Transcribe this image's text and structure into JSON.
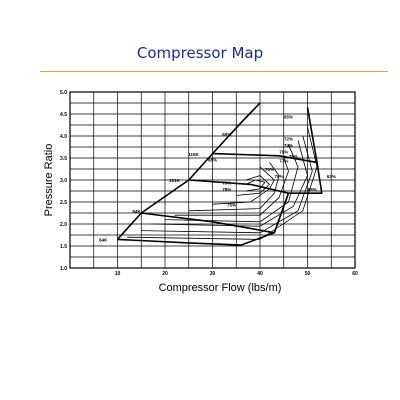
{
  "title": "Compressor Map",
  "chart_data": {
    "type": "line",
    "title": "Compressor Map",
    "xlabel": "Compressor Flow (lbs/m)",
    "ylabel": "Pressure Ratio",
    "xlim": [
      0,
      60
    ],
    "ylim": [
      1.0,
      5.0
    ],
    "x_ticks": [
      "10",
      "20",
      "30",
      "40",
      "50",
      "60"
    ],
    "y_ticks": [
      "1.0",
      "1.5",
      "2.0",
      "2.5",
      "3.0",
      "3.5",
      "4.0",
      "4.5",
      "5.0"
    ],
    "grid": true,
    "speed_lines": [
      {
        "label": "64K",
        "points": [
          [
            10,
            1.65
          ],
          [
            25,
            1.57
          ],
          [
            36,
            1.52
          ]
        ]
      },
      {
        "label": "84K",
        "points": [
          [
            15,
            2.25
          ],
          [
            30,
            2.05
          ],
          [
            38,
            1.9
          ],
          [
            43,
            1.8
          ]
        ]
      },
      {
        "label": "101K",
        "points": [
          [
            25,
            3.0
          ],
          [
            38,
            2.9
          ],
          [
            46,
            2.7
          ]
        ]
      },
      {
        "label": "115K",
        "points": [
          [
            30,
            3.6
          ],
          [
            44,
            3.55
          ],
          [
            52,
            3.4
          ]
        ]
      },
      {
        "label": "surge_line",
        "points": [
          [
            10,
            1.65
          ],
          [
            15,
            2.25
          ],
          [
            25,
            3.0
          ],
          [
            30,
            3.6
          ],
          [
            36,
            4.3
          ],
          [
            40,
            4.75
          ]
        ]
      },
      {
        "label": "choke_line",
        "points": [
          [
            50,
            4.65
          ],
          [
            52,
            3.4
          ],
          [
            53,
            2.7
          ],
          [
            46,
            2.7
          ],
          [
            43,
            1.8
          ],
          [
            36,
            1.52
          ]
        ]
      }
    ],
    "efficiency_islands": [
      {
        "label": "60%",
        "points": [
          [
            12,
            1.7
          ],
          [
            40,
            1.65
          ],
          [
            49,
            2.3
          ],
          [
            52,
            3.3
          ],
          [
            50,
            4.2
          ]
        ]
      },
      {
        "label": "65%",
        "points": [
          [
            15,
            1.85
          ],
          [
            40,
            1.8
          ],
          [
            48,
            2.3
          ],
          [
            51,
            3.2
          ],
          [
            49,
            4.0
          ]
        ]
      },
      {
        "label": "68%",
        "points": [
          [
            17,
            2.0
          ],
          [
            40,
            1.95
          ],
          [
            47,
            2.4
          ],
          [
            50,
            3.1
          ],
          [
            48,
            3.9
          ]
        ]
      },
      {
        "label": "70%",
        "points": [
          [
            20,
            2.1
          ],
          [
            40,
            2.05
          ],
          [
            46,
            2.5
          ],
          [
            48,
            3.3
          ],
          [
            46,
            3.8
          ]
        ]
      },
      {
        "label": "72%",
        "points": [
          [
            22,
            2.2
          ],
          [
            40,
            2.2
          ],
          [
            44,
            2.6
          ],
          [
            46,
            3.2
          ],
          [
            45,
            3.5
          ]
        ]
      },
      {
        "label": "74%",
        "points": [
          [
            25,
            2.3
          ],
          [
            40,
            2.35
          ],
          [
            43,
            2.7
          ],
          [
            44,
            3.1
          ],
          [
            42,
            3.4
          ]
        ]
      },
      {
        "label": "76%",
        "points": [
          [
            30,
            2.45
          ],
          [
            38,
            2.5
          ],
          [
            42,
            2.8
          ],
          [
            43,
            3.0
          ],
          [
            40,
            3.3
          ]
        ]
      },
      {
        "label": "77%",
        "points": [
          [
            35,
            2.65
          ],
          [
            40,
            2.7
          ],
          [
            42,
            2.9
          ],
          [
            40,
            3.1
          ],
          [
            37,
            3.0
          ]
        ]
      },
      {
        "label": "78%",
        "points": [
          [
            37,
            2.75
          ],
          [
            40,
            2.8
          ],
          [
            41,
            2.95
          ],
          [
            39,
            3.0
          ],
          [
            37,
            2.9
          ]
        ]
      }
    ],
    "annotations": [
      {
        "text": "64K",
        "x": 7,
        "y": 1.6
      },
      {
        "text": "84K",
        "x": 14,
        "y": 2.25
      },
      {
        "text": "101K",
        "x": 22,
        "y": 2.95
      },
      {
        "text": "115K",
        "x": 26,
        "y": 3.55
      },
      {
        "text": "60%",
        "x": 33,
        "y": 4.0
      },
      {
        "text": "65%",
        "x": 46,
        "y": 4.4
      },
      {
        "text": "68%",
        "x": 30,
        "y": 3.42
      },
      {
        "text": "70%",
        "x": 42,
        "y": 3.2
      },
      {
        "text": "72%",
        "x": 46,
        "y": 3.9
      },
      {
        "text": "74%",
        "x": 46,
        "y": 3.75
      },
      {
        "text": "76%",
        "x": 44,
        "y": 3.05
      },
      {
        "text": "77%",
        "x": 45,
        "y": 3.4
      },
      {
        "text": "78%",
        "x": 47,
        "y": 3.5
      },
      {
        "text": "79%",
        "x": 45,
        "y": 3.6
      },
      {
        "text": "79%",
        "x": 33,
        "y": 2.9
      },
      {
        "text": "78%",
        "x": 33,
        "y": 2.75
      },
      {
        "text": "75%",
        "x": 34,
        "y": 2.4
      },
      {
        "text": "63%",
        "x": 55,
        "y": 3.05
      },
      {
        "text": "65%",
        "x": 51,
        "y": 2.75
      }
    ]
  }
}
